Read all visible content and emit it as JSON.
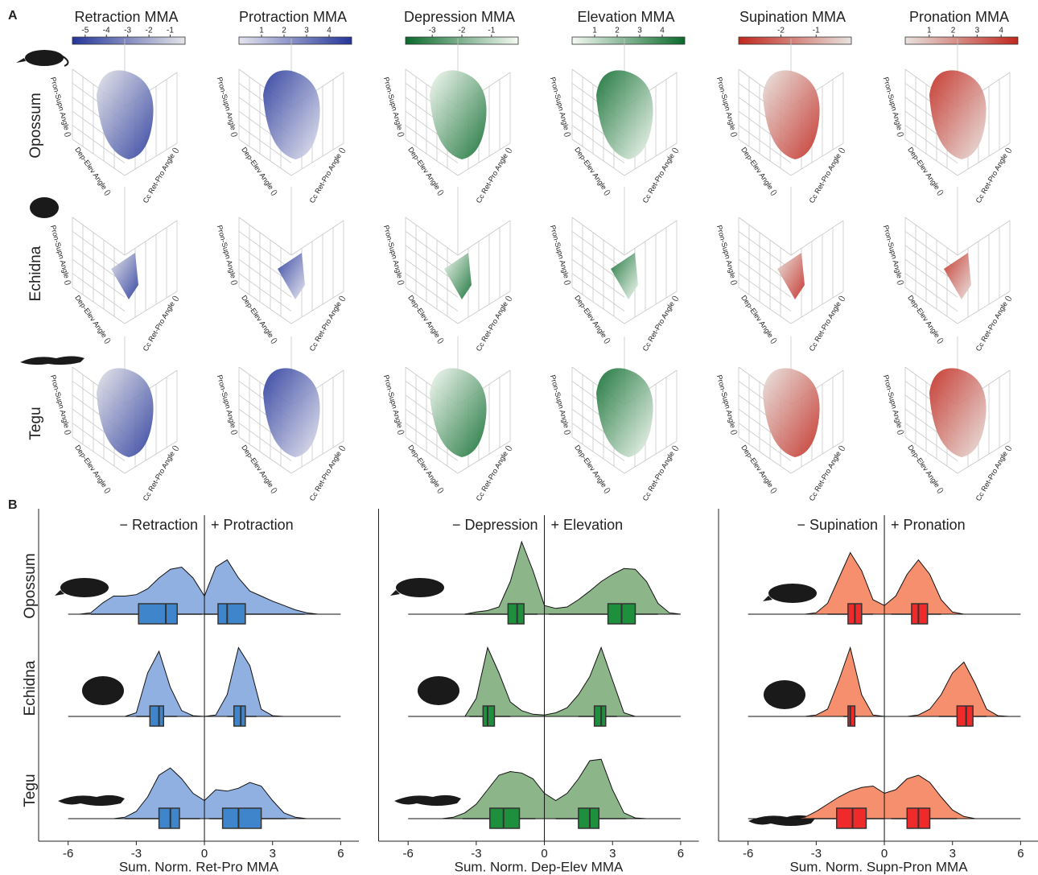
{
  "panel_a": {
    "label": "A",
    "rows": [
      "Opossum",
      "Echidna",
      "Tegu"
    ]
  },
  "panel_b": {
    "label": "B",
    "rows": [
      "Opossum",
      "Echidna",
      "Tegu"
    ]
  },
  "chart_data": [
    {
      "type": "scatter3d",
      "title": "Retraction MMA",
      "lim": [
        -5.6,
        -0.3
      ],
      "ticks": [
        -5,
        -4,
        -3,
        -2,
        -1
      ],
      "colors": [
        "#25369a",
        "#e4e4e8"
      ],
      "zlabel": "Pron-Supn Angle ()",
      "xlabel": "Dep-Elev Angle ()",
      "ylabel": "Cc Ret-Pro Angle ()"
    },
    {
      "type": "scatter3d",
      "title": "Protraction MMA",
      "lim": [
        0,
        5
      ],
      "ticks": [
        1,
        2,
        3,
        4
      ],
      "colors": [
        "#e4e4ee",
        "#25369a"
      ],
      "zlabel": "Pron-Supn Angle ()",
      "xlabel": "Dep-Elev Angle ()",
      "ylabel": "Cc Ret-Pro Angle ()"
    },
    {
      "type": "scatter3d",
      "title": "Depression MMA",
      "lim": [
        -3.9,
        -0.1
      ],
      "ticks": [
        -3,
        -2,
        -1
      ],
      "colors": [
        "#0b6a2c",
        "#f4f9f2"
      ],
      "zlabel": "Pron-Supn Angle ()",
      "xlabel": "Dep-Elev Angle ()",
      "ylabel": "Cc Ret-Pro Angle ()"
    },
    {
      "type": "scatter3d",
      "title": "Elevation MMA",
      "lim": [
        0,
        5
      ],
      "ticks": [
        1,
        2,
        3,
        4
      ],
      "colors": [
        "#f4f9f2",
        "#0b6a2c"
      ],
      "zlabel": "Pron-Supn Angle ()",
      "xlabel": "Dep-Elev Angle ()",
      "ylabel": "Cc Ret-Pro Angle ()"
    },
    {
      "type": "scatter3d",
      "title": "Supination MMA",
      "lim": [
        -3.2,
        0
      ],
      "ticks": [
        -2,
        -1
      ],
      "colors": [
        "#c0281e",
        "#e8e2de"
      ],
      "zlabel": "Pron-Supn Angle ()",
      "xlabel": "Dep-Elev Angle ()",
      "ylabel": "Cc Ret-Pro Angle ()"
    },
    {
      "type": "scatter3d",
      "title": "Pronation MMA",
      "lim": [
        0,
        4.7
      ],
      "ticks": [
        1,
        2,
        3,
        4
      ],
      "colors": [
        "#e8e2de",
        "#c0281e"
      ],
      "zlabel": "Pron-Supn Angle ()",
      "xlabel": "Dep-Elev Angle ()",
      "ylabel": "Cc Ret-Pro Angle ()"
    },
    {
      "type": "ridgeline",
      "left_label": "− Retraction",
      "right_label": "+ Protraction",
      "xlabel": "Sum. Norm. Ret-Pro MMA",
      "xlim": [
        -7.3,
        6.8
      ],
      "xticks": [
        -6,
        -3,
        0,
        3,
        6
      ],
      "fill": "#8fb0e0",
      "box_color": "#3f85cc",
      "x": [
        -6,
        -5.5,
        -5,
        -4.5,
        -4,
        -3.5,
        -3,
        -2.5,
        -2,
        -1.5,
        -1,
        -0.5,
        0,
        0.5,
        1,
        1.5,
        2,
        2.5,
        3,
        3.5,
        4,
        4.5,
        5,
        5.5,
        6
      ],
      "series": [
        {
          "density": [
            0,
            0,
            0.02,
            0.15,
            0.25,
            0.25,
            0.27,
            0.35,
            0.5,
            0.62,
            0.65,
            0.5,
            0.25,
            0.65,
            0.75,
            0.5,
            0.32,
            0.25,
            0.18,
            0.12,
            0.06,
            0.02,
            0,
            0,
            0
          ],
          "boxes": [
            {
              "lo": -5,
              "q1": -2.9,
              "median": -1.7,
              "q3": -1.2,
              "hi": -0.1
            },
            {
              "lo": 0,
              "q1": 0.6,
              "median": 1.0,
              "q3": 1.8,
              "hi": 4.4
            }
          ]
        },
        {
          "density": [
            0,
            0,
            0,
            0,
            0,
            0,
            0.05,
            0.6,
            0.9,
            0.4,
            0.08,
            0.01,
            0,
            0.02,
            0.3,
            0.95,
            0.7,
            0.1,
            0.01,
            0,
            0,
            0,
            0,
            0,
            0
          ],
          "boxes": [
            {
              "lo": -3,
              "q1": -2.4,
              "median": -2.0,
              "q3": -1.8,
              "hi": -1.2
            },
            {
              "lo": 1.0,
              "q1": 1.3,
              "median": 1.6,
              "q3": 1.8,
              "hi": 2.3
            }
          ]
        },
        {
          "density": [
            0,
            0,
            0,
            0,
            0,
            0.02,
            0.1,
            0.3,
            0.6,
            0.7,
            0.55,
            0.35,
            0.25,
            0.4,
            0.38,
            0.42,
            0.5,
            0.45,
            0.25,
            0.08,
            0.02,
            0,
            0,
            0,
            0
          ],
          "boxes": [
            {
              "lo": -3.5,
              "q1": -2.0,
              "median": -1.5,
              "q3": -1.1,
              "hi": -0.2
            },
            {
              "lo": 0.2,
              "q1": 0.8,
              "median": 1.5,
              "q3": 2.5,
              "hi": 3.6
            }
          ]
        }
      ]
    },
    {
      "type": "ridgeline",
      "left_label": "− Depression",
      "right_label": "+ Elevation",
      "xlabel": "Sum. Norm. Dep-Elev MMA",
      "xlim": [
        -7.3,
        6.8
      ],
      "xticks": [
        -6,
        -3,
        0,
        3,
        6
      ],
      "fill": "#8db58a",
      "box_color": "#1e8f3c",
      "x": [
        -6,
        -5.5,
        -5,
        -4.5,
        -4,
        -3.5,
        -3,
        -2.5,
        -2,
        -1.5,
        -1,
        -0.5,
        0,
        0.5,
        1,
        1.5,
        2,
        2.5,
        3,
        3.5,
        4,
        4.5,
        5,
        5.5,
        6
      ],
      "series": [
        {
          "density": [
            0,
            0,
            0,
            0,
            0,
            0,
            0.03,
            0.05,
            0.1,
            0.45,
            1.0,
            0.6,
            0.12,
            0.08,
            0.1,
            0.2,
            0.32,
            0.45,
            0.55,
            0.63,
            0.62,
            0.45,
            0.15,
            0.02,
            0
          ],
          "boxes": [
            {
              "lo": -3.5,
              "q1": -1.6,
              "median": -1.2,
              "q3": -0.9,
              "hi": -0.3
            },
            {
              "lo": 0.2,
              "q1": 2.8,
              "median": 3.4,
              "q3": 4.0,
              "hi": 5.0
            }
          ]
        },
        {
          "density": [
            0,
            0,
            0,
            0,
            0,
            0,
            0.25,
            0.95,
            0.6,
            0.2,
            0.08,
            0.03,
            0.02,
            0.05,
            0.12,
            0.3,
            0.55,
            0.95,
            0.5,
            0.05,
            0,
            0,
            0,
            0,
            0
          ],
          "boxes": [
            {
              "lo": -3.3,
              "q1": -2.7,
              "median": -2.5,
              "q3": -2.2,
              "hi": -1.5
            },
            {
              "lo": 1.5,
              "q1": 2.2,
              "median": 2.5,
              "q3": 2.7,
              "hi": 3.2
            }
          ]
        },
        {
          "density": [
            0,
            0,
            0,
            0,
            0.02,
            0.08,
            0.2,
            0.4,
            0.6,
            0.65,
            0.63,
            0.55,
            0.35,
            0.25,
            0.35,
            0.55,
            0.8,
            0.82,
            0.4,
            0.08,
            0.01,
            0,
            0,
            0,
            0
          ],
          "boxes": [
            {
              "lo": -3.6,
              "q1": -2.4,
              "median": -1.8,
              "q3": -1.1,
              "hi": -0.4
            },
            {
              "lo": 0.5,
              "q1": 1.5,
              "median": 2.0,
              "q3": 2.4,
              "hi": 3.6
            }
          ]
        }
      ]
    },
    {
      "type": "ridgeline",
      "left_label": "− Supination",
      "right_label": "+ Pronation",
      "xlabel": "Sum. Norm. Supn-Pron MMA",
      "xlim": [
        -7.3,
        6.8
      ],
      "xticks": [
        -6,
        -3,
        0,
        3,
        6
      ],
      "fill": "#f58f6e",
      "box_color": "#ee2a2a",
      "x": [
        -6,
        -5.5,
        -5,
        -4.5,
        -4,
        -3.5,
        -3,
        -2.5,
        -2,
        -1.5,
        -1,
        -0.5,
        0,
        0.5,
        1,
        1.5,
        2,
        2.5,
        3,
        3.5,
        4,
        4.5,
        5,
        5.5,
        6
      ],
      "series": [
        {
          "density": [
            0,
            0,
            0,
            0,
            0,
            0,
            0.02,
            0.15,
            0.5,
            0.85,
            0.6,
            0.2,
            0.12,
            0.25,
            0.55,
            0.75,
            0.55,
            0.2,
            0.03,
            0,
            0,
            0,
            0,
            0,
            0
          ],
          "boxes": [
            {
              "lo": -2.5,
              "q1": -1.6,
              "median": -1.3,
              "q3": -1.0,
              "hi": -0.5
            },
            {
              "lo": 0.3,
              "q1": 1.2,
              "median": 1.5,
              "q3": 1.9,
              "hi": 2.5
            }
          ]
        },
        {
          "density": [
            0,
            0,
            0,
            0,
            0,
            0,
            0.02,
            0.1,
            0.5,
            0.95,
            0.3,
            0.02,
            0,
            0,
            0,
            0.02,
            0.1,
            0.3,
            0.6,
            0.75,
            0.45,
            0.1,
            0.01,
            0,
            0
          ],
          "boxes": [
            {
              "lo": -1.8,
              "q1": -1.6,
              "median": -1.5,
              "q3": -1.3,
              "hi": -1.2
            },
            {
              "lo": 2.4,
              "q1": 3.2,
              "median": 3.6,
              "q3": 3.9,
              "hi": 4.5
            }
          ]
        },
        {
          "density": [
            0,
            0,
            0,
            0,
            0,
            0.02,
            0.1,
            0.2,
            0.3,
            0.38,
            0.43,
            0.45,
            0.35,
            0.4,
            0.55,
            0.6,
            0.5,
            0.3,
            0.12,
            0.03,
            0,
            0,
            0,
            0,
            0
          ],
          "boxes": [
            {
              "lo": -3.2,
              "q1": -2.1,
              "median": -1.4,
              "q3": -0.8,
              "hi": 0
            },
            {
              "lo": 0.3,
              "q1": 1.0,
              "median": 1.5,
              "q3": 2.0,
              "hi": 3.2
            }
          ]
        }
      ]
    }
  ]
}
